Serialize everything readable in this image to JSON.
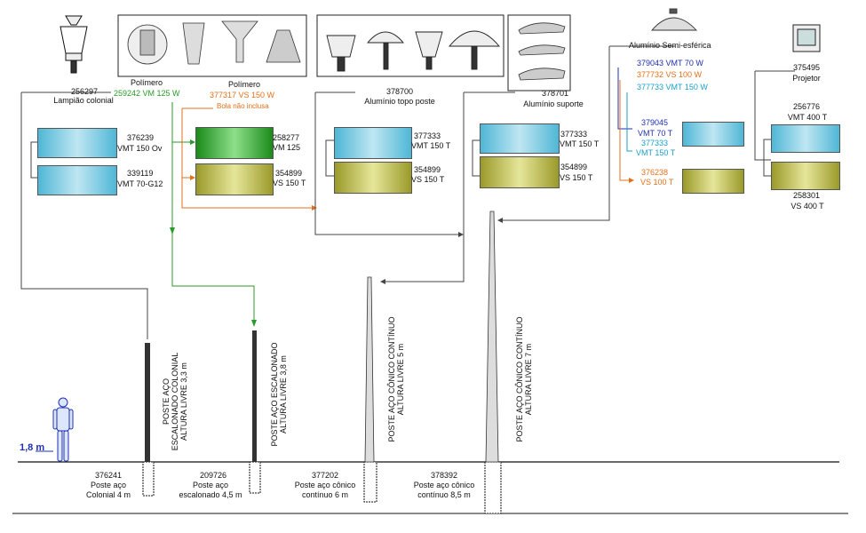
{
  "groups": {
    "colonial": {
      "code": "256297",
      "name": "Lampião colonial"
    },
    "polimero1": {
      "title": "Polímero",
      "code_name": "259242 VM 125 W"
    },
    "polimero2": {
      "title": "Polímero",
      "code_name": "377317 VS 150 W",
      "note": "Bola não inclusa"
    },
    "topo": {
      "code": "378700",
      "name": "Alumínio topo poste"
    },
    "suporte": {
      "code": "378701",
      "name": "Alumínio suporte"
    },
    "semiesferica": {
      "title": "Alumínio Semi-esférica",
      "items": [
        "379043 VMT 70 W",
        "377732 VS 100 W",
        "377733 VMT 150 W"
      ]
    },
    "projetor": {
      "code": "375495",
      "name": "Projetor"
    }
  },
  "lamps": {
    "l376239": {
      "code": "376239",
      "name": "VMT 150 Ov"
    },
    "l339119": {
      "code": "339119",
      "name": "VMT 70-G12"
    },
    "l258277": {
      "code": "258277",
      "name": "VM 125"
    },
    "l354899a": {
      "code": "354899",
      "name": "VS 150 T"
    },
    "l377333a": {
      "code": "377333",
      "name": "VMT 150 T"
    },
    "l354899b": {
      "code": "354899",
      "name": "VS 150 T"
    },
    "l377333b": {
      "code": "377333",
      "name": "VMT 150 T"
    },
    "l354899c": {
      "code": "354899",
      "name": "VS 150 T"
    },
    "l379045": {
      "code": "379045",
      "name": "VMT 70 T"
    },
    "l377333c": {
      "code": "377333",
      "name": "VMT 150 T"
    },
    "l376238": {
      "code": "376238",
      "name": "VS 100 T"
    },
    "l256776": {
      "code": "256776",
      "name": "VMT 400 T"
    },
    "l258301": {
      "code": "258301",
      "name": "VS 400 T"
    }
  },
  "poles_vertical": {
    "p1_l1": "POSTE AÇO",
    "p1_l2": "ESCALONADO COLONIAL",
    "p1_l3": "ALTURA LIVRE 3,3 m",
    "p2_l1": "POSTE AÇO ESCALONADO",
    "p2_l2": "ALTURA LIVRE 3,8 m",
    "p3_l1": "POSTE AÇO CÔNICO CONTÍNUO",
    "p3_l2": "ALTURA LIVRE 5 m",
    "p4_l1": "POSTE AÇO CÔNICO CONTÍNUO",
    "p4_l2": "ALTURA LIVRE 7 m"
  },
  "poles_bottom": {
    "b1": {
      "code": "376241",
      "l1": "Poste aço",
      "l2": "Colonial 4 m"
    },
    "b2": {
      "code": "209726",
      "l1": "Poste aço",
      "l2": "escalonado 4,5 m"
    },
    "b3": {
      "code": "377202",
      "l1": "Poste aço cônico",
      "l2": "contínuo 6 m"
    },
    "b4": {
      "code": "378392",
      "l1": "Poste aço cônico",
      "l2": "contínuo 8,5 m"
    }
  },
  "human_height": "1,8 m",
  "colors": {
    "green": "#2a9a2a",
    "orange": "#e0701a",
    "blue": "#1e2fb0",
    "cyan": "#1aa0c8"
  }
}
